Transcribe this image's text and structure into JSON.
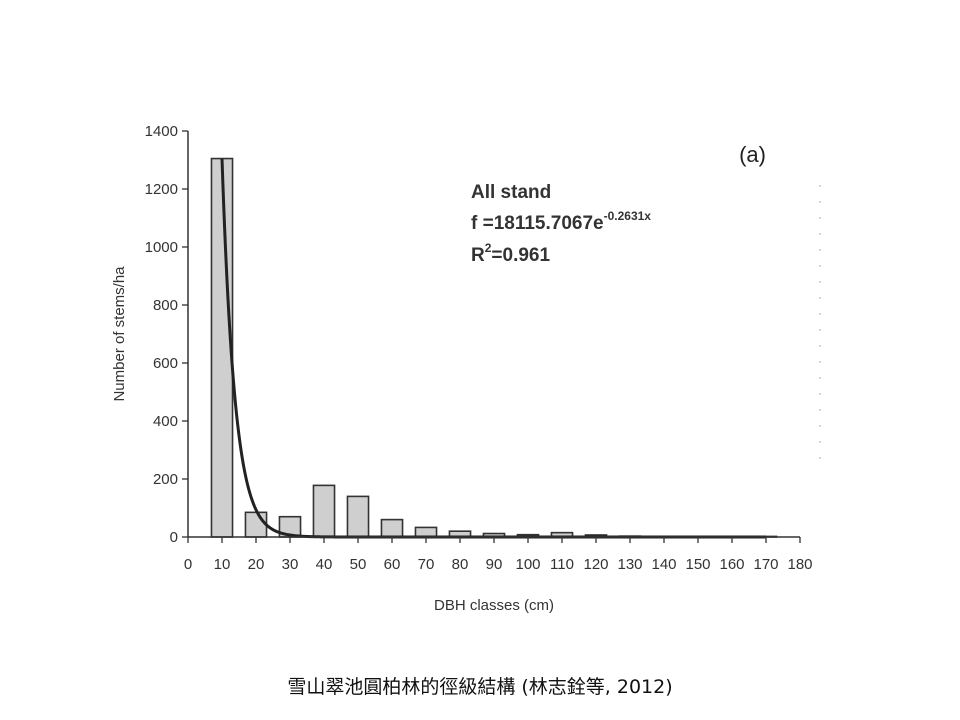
{
  "chart_data": {
    "type": "bar",
    "panel_label": "(a)",
    "xlabel": "DBH classes (cm)",
    "ylabel": "Number of stems/ha",
    "xlim": [
      0,
      180
    ],
    "ylim": [
      0,
      1400
    ],
    "x_ticks": [
      0,
      10,
      20,
      30,
      40,
      50,
      60,
      70,
      80,
      90,
      100,
      110,
      120,
      130,
      140,
      150,
      160,
      170,
      180
    ],
    "y_ticks": [
      0,
      200,
      400,
      600,
      800,
      1000,
      1200,
      1400
    ],
    "grid": false,
    "x": [
      10,
      20,
      30,
      40,
      50,
      60,
      70,
      80,
      90,
      100,
      110,
      120,
      130,
      140,
      150,
      160,
      170
    ],
    "values": [
      1305,
      85,
      70,
      178,
      140,
      60,
      33,
      20,
      12,
      8,
      15,
      7,
      3,
      2,
      2,
      2,
      2
    ],
    "fit": {
      "type": "exponential",
      "a": 18115.7067,
      "b": -0.2631
    },
    "annotation": {
      "line1": "All stand",
      "line2": "f =18115.7067e",
      "line2_sup": "-0.2631x",
      "line3_pre": "R",
      "line3_sup": "2",
      "line3_post": "=0.961"
    }
  },
  "caption": "雪山翠池圓柏林的徑級結構 (林志銓等, 2012)"
}
